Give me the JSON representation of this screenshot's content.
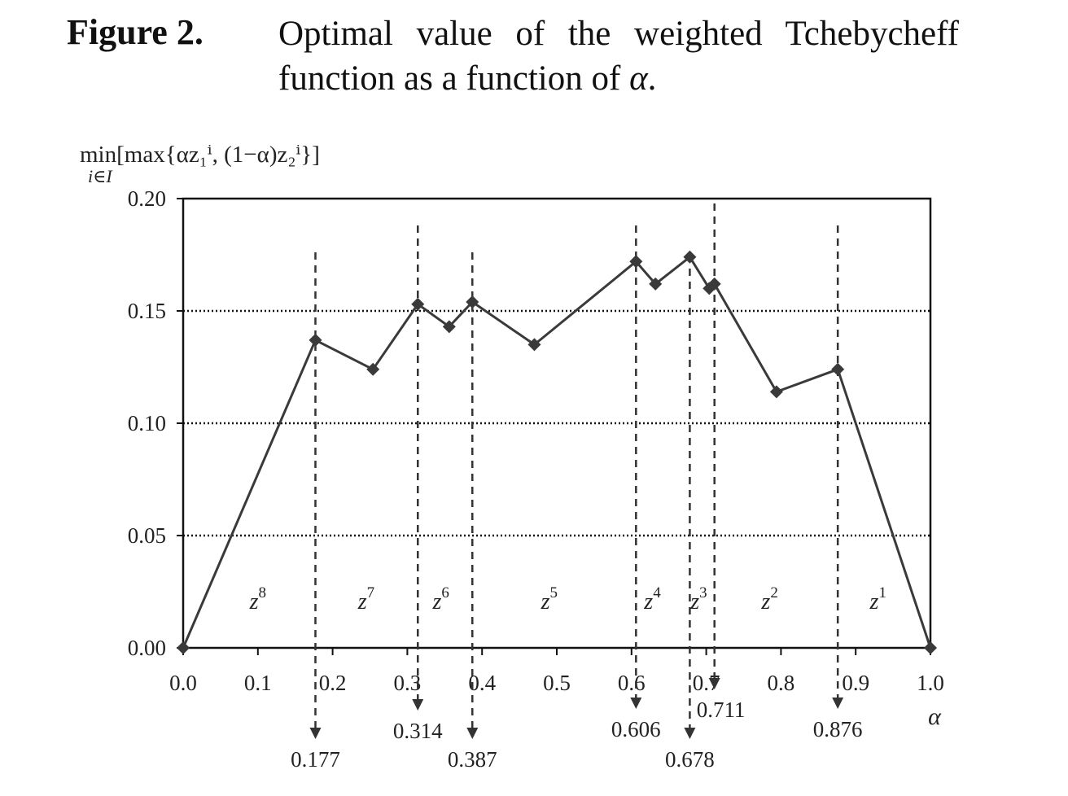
{
  "figure": {
    "label": "Figure 2.",
    "caption": "Optimal value of the weighted Tchebycheff function as a function of",
    "caption_symbol": "α",
    "caption_end": "."
  },
  "chart_data": {
    "type": "line",
    "ylabel": "min[max{αz₁ⁱ, (1−α)z₂ⁱ}]",
    "ylabel_sub": "i∈I",
    "xlabel": "α",
    "xlim": [
      0,
      1
    ],
    "ylim": [
      0,
      0.2
    ],
    "grid": "horizontal dotted at 0.05, 0.10, 0.15",
    "x_ticks": [
      "0.0",
      "0.1",
      "0.2",
      "0.3",
      "0.4",
      "0.5",
      "0.6",
      "0.7",
      "0.8",
      "0.9",
      "1.0"
    ],
    "y_ticks": [
      "0.00",
      "0.05",
      "0.10",
      "0.15",
      "0.20"
    ],
    "series": [
      {
        "x": [
          0.0,
          0.177,
          0.254,
          0.314,
          0.356,
          0.387,
          0.47,
          0.606,
          0.632,
          0.678,
          0.704,
          0.711,
          0.794,
          0.876,
          1.0
        ],
        "y": [
          0.0,
          0.137,
          0.124,
          0.153,
          0.143,
          0.154,
          0.135,
          0.172,
          0.162,
          0.174,
          0.16,
          0.162,
          0.114,
          0.124,
          0.0
        ]
      }
    ],
    "breakpoints": [
      {
        "x": 0.177,
        "label": "0.177"
      },
      {
        "x": 0.314,
        "label": "0.314"
      },
      {
        "x": 0.387,
        "label": "0.387"
      },
      {
        "x": 0.606,
        "label": "0.606"
      },
      {
        "x": 0.678,
        "label": "0.678"
      },
      {
        "x": 0.711,
        "label": "0.711"
      },
      {
        "x": 0.876,
        "label": "0.876"
      }
    ],
    "regions": [
      {
        "x": 0.1,
        "label": "z",
        "sup": "8"
      },
      {
        "x": 0.245,
        "label": "z",
        "sup": "7"
      },
      {
        "x": 0.345,
        "label": "z",
        "sup": "6"
      },
      {
        "x": 0.49,
        "label": "z",
        "sup": "5"
      },
      {
        "x": 0.628,
        "label": "z",
        "sup": "4"
      },
      {
        "x": 0.69,
        "label": "z",
        "sup": "3"
      },
      {
        "x": 0.785,
        "label": "z",
        "sup": "2"
      },
      {
        "x": 0.93,
        "label": "z",
        "sup": "1"
      }
    ]
  }
}
